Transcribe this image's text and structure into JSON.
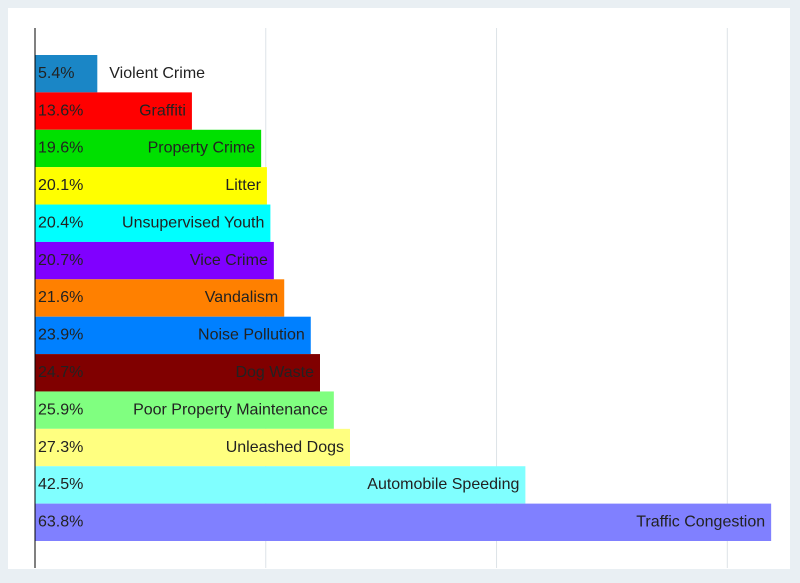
{
  "chart_data": {
    "type": "bar",
    "orientation": "horizontal",
    "categories": [
      "Violent Crime",
      "Graffiti",
      "Property Crime",
      "Litter",
      "Unsupervised Youth",
      "Vice Crime",
      "Vandalism",
      "Noise Pollution",
      "Dog Waste",
      "Poor Property Maintenance",
      "Unleashed Dogs",
      "Automobile Speeding",
      "Traffic Congestion"
    ],
    "values": [
      5.4,
      13.6,
      19.6,
      20.1,
      20.4,
      20.7,
      21.6,
      23.9,
      24.7,
      25.9,
      27.3,
      42.5,
      63.8
    ],
    "value_labels": [
      "5.4%",
      "13.6%",
      "19.6%",
      "20.1%",
      "20.4%",
      "20.7%",
      "21.6%",
      "23.9%",
      "24.7%",
      "25.9%",
      "27.3%",
      "42.5%",
      "63.8%"
    ],
    "colors": [
      "#1a86c6",
      "#ff0000",
      "#00e000",
      "#ffff00",
      "#00ffff",
      "#8000ff",
      "#ff8000",
      "#0080ff",
      "#800000",
      "#80ff80",
      "#ffff80",
      "#80ffff",
      "#8080ff"
    ],
    "xlim": [
      0,
      65
    ],
    "xticks": [
      20,
      40,
      60
    ],
    "grid": true
  }
}
